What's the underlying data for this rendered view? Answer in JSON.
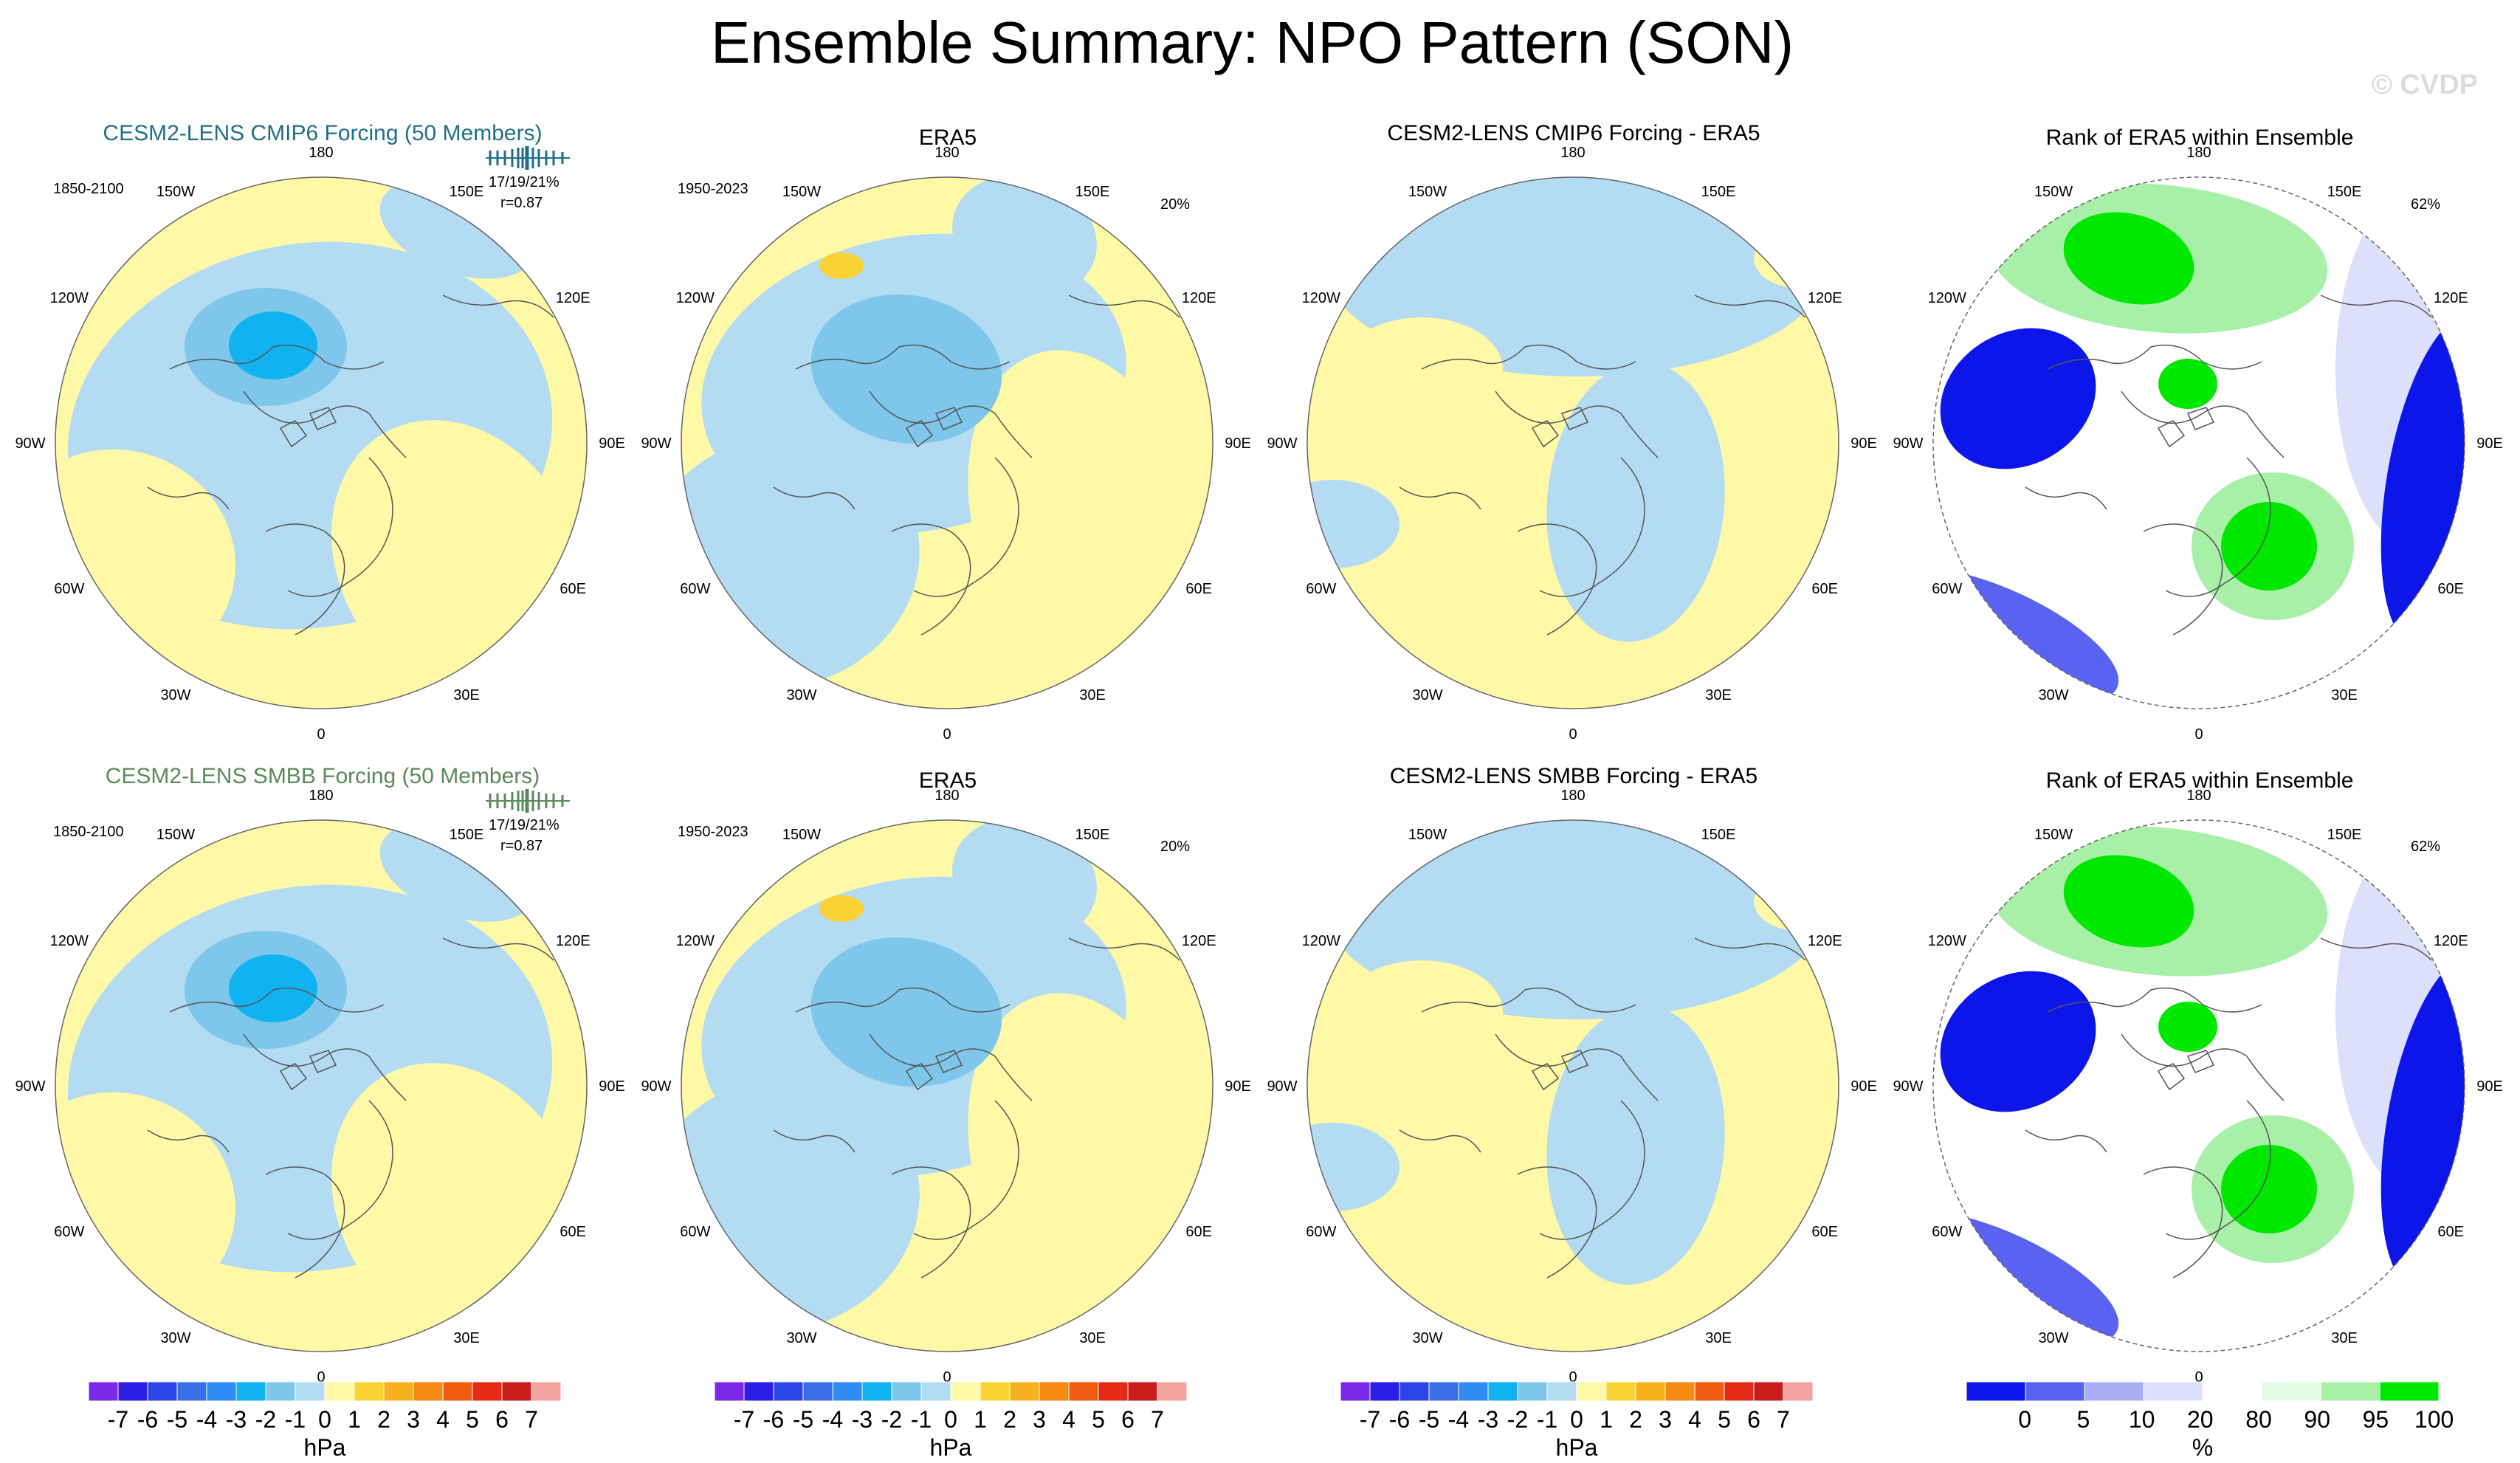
{
  "title": "Ensemble Summary: NPO Pattern (SON)",
  "watermark": "© CVDP",
  "rows": [
    {
      "model_title": "CESM2-LENS CMIP6 Forcing (50 Members)",
      "model_title_color": "#1f6f8b",
      "model_period": "1850-2100",
      "model_stats": "17/19/21%",
      "model_corr": "r=0.87",
      "obs_title": "ERA5",
      "obs_period": "1950-2023",
      "obs_pct": "20%",
      "diff_title": "CESM2-LENS CMIP6 Forcing - ERA5",
      "rank_title": "Rank of ERA5 within Ensemble",
      "rank_pct": "62%"
    },
    {
      "model_title": "CESM2-LENS SMBB Forcing (50 Members)",
      "model_title_color": "#5b8a5b",
      "model_period": "1850-2100",
      "model_stats": "17/19/21%",
      "model_corr": "r=0.87",
      "obs_title": "ERA5",
      "obs_period": "1950-2023",
      "obs_pct": "20%",
      "diff_title": "CESM2-LENS SMBB Forcing - ERA5",
      "rank_title": "Rank of ERA5 within Ensemble",
      "rank_pct": "62%"
    }
  ],
  "longitude_labels": [
    "180",
    "150E",
    "120E",
    "90E",
    "60E",
    "30E",
    "0",
    "30W",
    "60W",
    "90W",
    "120W",
    "150W"
  ],
  "colorbar_hpa": {
    "colors": [
      "#7d2ae8",
      "#2b1de6",
      "#2a47e6",
      "#3a6fe8",
      "#2f8cf2",
      "#10b3f0",
      "#7ec6ea",
      "#b3dcf2",
      "#fff8a6",
      "#f9d335",
      "#f6b21e",
      "#f48a14",
      "#ef5c12",
      "#e52a16",
      "#c81d1d",
      "#f4a3a3"
    ],
    "labels": [
      "-7",
      "-6",
      "-5",
      "-4",
      "-3",
      "-2",
      "-1",
      "0",
      "1",
      "2",
      "3",
      "4",
      "5",
      "6",
      "7"
    ],
    "unit": "hPa"
  },
  "colorbar_rank": {
    "colors": [
      "#0d16e8",
      "#5a63ef",
      "#a9aef4",
      "#dde0fa",
      "#ffffff",
      "#e4fbe4",
      "#a8f0a8",
      "#00e800"
    ],
    "labels": [
      "0",
      "5",
      "10",
      "20",
      "80",
      "90",
      "95",
      "100"
    ],
    "unit": "%"
  },
  "field_colors": {
    "pos": "#fff8a6",
    "neg1": "#b3dcf2",
    "neg2": "#7ec6ea",
    "neg3": "#10b3f0",
    "posstrong": "#f9d335",
    "rank_blue": "#0d16e8",
    "rank_mid": "#5a63ef",
    "rank_light": "#dde0fa",
    "rank_green": "#00e800",
    "rank_lgreen": "#a8f0a8"
  }
}
